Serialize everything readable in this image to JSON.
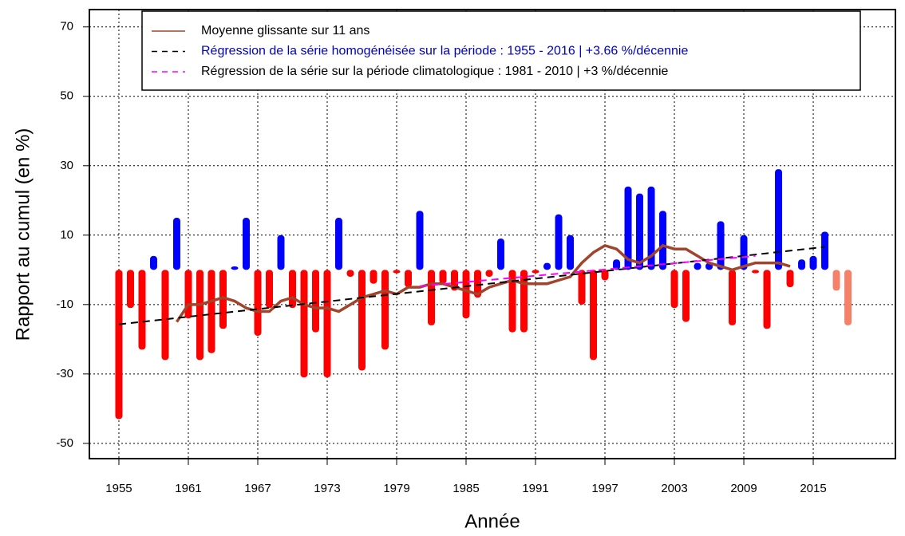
{
  "chart_data": {
    "type": "bar",
    "xlabel": "Année",
    "ylabel": "Rapport au cumul (en %)",
    "x": [
      1955,
      1956,
      1957,
      1958,
      1959,
      1960,
      1961,
      1962,
      1963,
      1964,
      1965,
      1966,
      1967,
      1968,
      1969,
      1970,
      1971,
      1972,
      1973,
      1974,
      1975,
      1976,
      1977,
      1978,
      1979,
      1980,
      1981,
      1982,
      1983,
      1984,
      1985,
      1986,
      1987,
      1988,
      1989,
      1990,
      1991,
      1992,
      1993,
      1994,
      1995,
      1996,
      1997,
      1998,
      1999,
      2000,
      2001,
      2002,
      2003,
      2004,
      2005,
      2006,
      2007,
      2008,
      2009,
      2010,
      2011,
      2012,
      2013,
      2014,
      2015,
      2016,
      2017,
      2018
    ],
    "values": [
      -43,
      -11,
      -23,
      4,
      -26,
      15,
      -14,
      -26,
      -24,
      -17,
      1,
      15,
      -19,
      -11,
      10,
      -11,
      -31,
      -18,
      -31,
      15,
      -2,
      -29,
      -4,
      -23,
      -1,
      -5,
      17,
      -16,
      -4,
      -6,
      -14,
      -8,
      -2,
      9,
      -18,
      -18,
      -1,
      2,
      16,
      10,
      -10,
      -26,
      -3,
      3,
      24,
      22,
      24,
      17,
      -11,
      -15,
      2,
      2,
      14,
      -16,
      10,
      -1,
      -17,
      29,
      -5,
      3,
      4,
      11,
      -6,
      -16
    ],
    "colors": [
      "#ff0000",
      "#ff0000",
      "#ff0000",
      "#0000ff",
      "#ff0000",
      "#0000ff",
      "#ff0000",
      "#ff0000",
      "#ff0000",
      "#ff0000",
      "#0000ff",
      "#0000ff",
      "#ff0000",
      "#ff0000",
      "#0000ff",
      "#ff0000",
      "#ff0000",
      "#ff0000",
      "#ff0000",
      "#0000ff",
      "#ff0000",
      "#ff0000",
      "#ff0000",
      "#ff0000",
      "#ff0000",
      "#ff0000",
      "#0000ff",
      "#ff0000",
      "#ff0000",
      "#ff0000",
      "#ff0000",
      "#ff0000",
      "#ff0000",
      "#0000ff",
      "#ff0000",
      "#ff0000",
      "#ff0000",
      "#0000ff",
      "#0000ff",
      "#0000ff",
      "#ff0000",
      "#ff0000",
      "#ff0000",
      "#0000ff",
      "#0000ff",
      "#0000ff",
      "#0000ff",
      "#0000ff",
      "#ff0000",
      "#ff0000",
      "#0000ff",
      "#0000ff",
      "#0000ff",
      "#ff0000",
      "#0000ff",
      "#ff0000",
      "#ff0000",
      "#0000ff",
      "#ff0000",
      "#0000ff",
      "#0000ff",
      "#0000ff",
      "#f4826a",
      "#f4826a"
    ],
    "xlim": [
      1952.45,
      2022.1
    ],
    "xticks": [
      1955,
      1961,
      1967,
      1973,
      1979,
      1985,
      1991,
      1997,
      2003,
      2009,
      2015
    ],
    "ylim": [
      -54.4,
      75
    ],
    "yticks": [
      -50,
      -30,
      -10,
      10,
      30,
      50,
      70
    ],
    "grid": true,
    "lines": [
      {
        "name": "Moyenne glissante sur 11 ans",
        "color": "#a0442c",
        "text_color": "#000000",
        "dash": "none",
        "x": [
          1960,
          1961,
          1962,
          1963,
          1964,
          1965,
          1966,
          1967,
          1968,
          1969,
          1970,
          1971,
          1972,
          1973,
          1974,
          1975,
          1976,
          1977,
          1978,
          1979,
          1980,
          1981,
          1982,
          1983,
          1984,
          1985,
          1986,
          1987,
          1988,
          1989,
          1990,
          1991,
          1992,
          1993,
          1994,
          1995,
          1996,
          1997,
          1998,
          1999,
          2000,
          2001,
          2002,
          2003,
          2004,
          2005,
          2006,
          2007,
          2008,
          2009,
          2010,
          2011,
          2012,
          2013
        ],
        "values": [
          -15,
          -10,
          -10,
          -9,
          -8,
          -9,
          -11,
          -12,
          -12,
          -9,
          -8,
          -10,
          -11,
          -11,
          -12,
          -10,
          -8,
          -7,
          -6,
          -7,
          -5,
          -5,
          -4,
          -4,
          -5,
          -6,
          -7,
          -5,
          -4,
          -3,
          -4,
          -4,
          -4,
          -3,
          -2,
          2,
          5,
          7,
          6,
          3,
          2,
          4,
          7,
          6,
          6,
          4,
          2,
          1,
          0,
          1,
          2,
          2,
          2,
          1
        ]
      },
      {
        "name": "Régression de la série homogénéisée sur la période : 1955 - 2016 | +3.66 %/décennie",
        "color": "#000000",
        "text_color": "#0000c0",
        "dash": "9 6",
        "x": [
          1955,
          2016
        ],
        "values": [
          -15.7,
          6.6
        ]
      },
      {
        "name": "Régression de la série sur la période climatologique : 1981 - 2010 | +3 %/décennie",
        "color": "#ff00ff",
        "text_color": "#000000",
        "dash": "9 6",
        "x": [
          1981,
          2010
        ],
        "values": [
          -4.7,
          4
        ]
      }
    ]
  }
}
